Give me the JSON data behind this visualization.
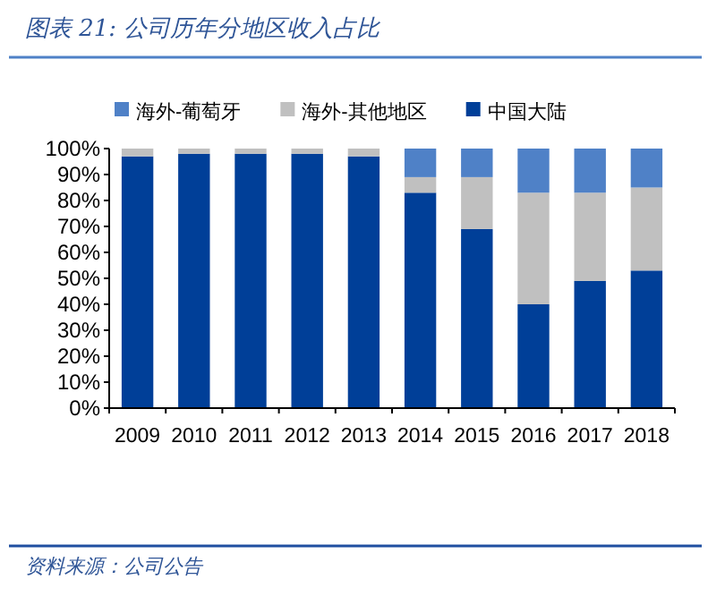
{
  "chart_data": {
    "type": "bar",
    "stacked": true,
    "title": "图表 21: 公司历年分地区收入占比",
    "categories": [
      "2009",
      "2010",
      "2011",
      "2012",
      "2013",
      "2014",
      "2015",
      "2016",
      "2017",
      "2018"
    ],
    "series": [
      {
        "name": "中国大陆",
        "color": "#003f98",
        "values": [
          97,
          98,
          98,
          98,
          97,
          83,
          69,
          40,
          49,
          53
        ]
      },
      {
        "name": "海外-其他地区",
        "color": "#c0c0c0",
        "values": [
          3,
          2,
          2,
          2,
          3,
          6,
          20,
          43,
          34,
          32
        ]
      },
      {
        "name": "海外-葡萄牙",
        "color": "#4f81c7",
        "values": [
          0,
          0,
          0,
          0,
          0,
          11,
          11,
          17,
          17,
          15
        ]
      }
    ],
    "ylim": [
      0,
      100
    ],
    "yticks": [
      {
        "value": 0,
        "label": "0%"
      },
      {
        "value": 10,
        "label": "10%"
      },
      {
        "value": 20,
        "label": "20%"
      },
      {
        "value": 30,
        "label": "30%"
      },
      {
        "value": 40,
        "label": "40%"
      },
      {
        "value": 50,
        "label": "50%"
      },
      {
        "value": 60,
        "label": "60%"
      },
      {
        "value": 70,
        "label": "70%"
      },
      {
        "value": 80,
        "label": "80%"
      },
      {
        "value": 90,
        "label": "90%"
      },
      {
        "value": 100,
        "label": "100%"
      }
    ],
    "legend": "top",
    "grid": false,
    "annotations": [
      "资料来源：公司公告"
    ]
  }
}
